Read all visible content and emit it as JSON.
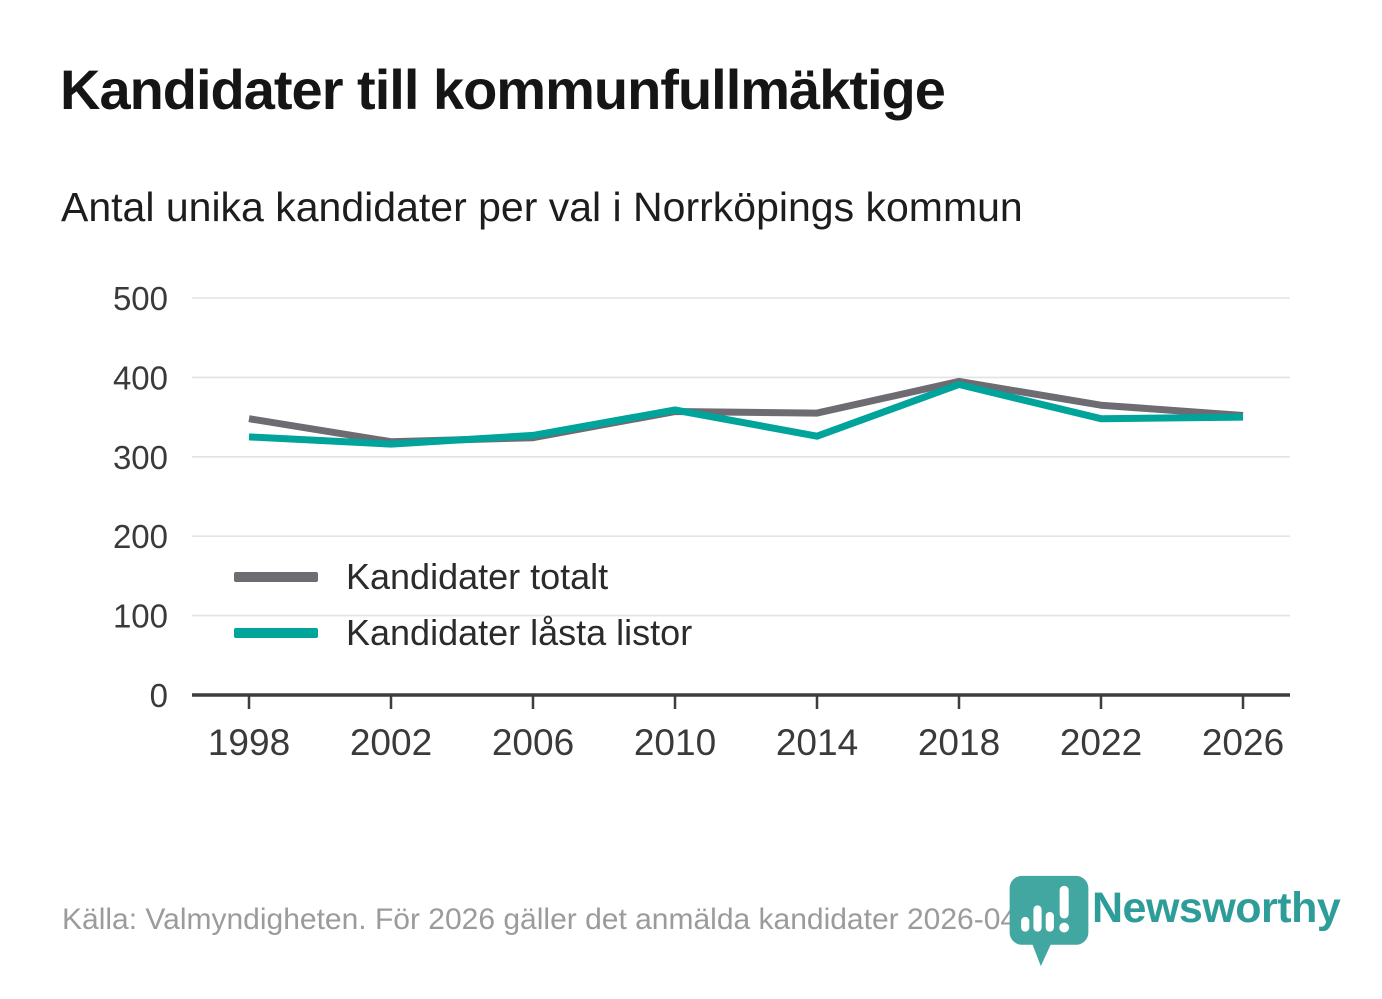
{
  "header": {
    "title": "Kandidater till kommunfullmäktige",
    "subtitle": "Antal unika kandidater per val i Norrköpings kommun"
  },
  "chart_data": {
    "type": "line",
    "title": "Kandidater till kommunfullmäktige",
    "subtitle": "Antal unika kandidater per val i Norrköpings kommun",
    "categories": [
      "1998",
      "2002",
      "2006",
      "2010",
      "2014",
      "2018",
      "2022",
      "2026"
    ],
    "series": [
      {
        "name": "Kandidater totalt",
        "color": "#6F6B72",
        "values": [
          348,
          319,
          324,
          357,
          355,
          395,
          365,
          352
        ]
      },
      {
        "name": "Kandidater låsta listor",
        "color": "#00A49A",
        "values": [
          325,
          316,
          327,
          359,
          326,
          391,
          348,
          350
        ]
      }
    ],
    "xlabel": "",
    "ylabel": "",
    "ylim": [
      0,
      500
    ],
    "yticks": [
      0,
      100,
      200,
      300,
      400,
      500
    ],
    "grid": true,
    "legend_position": "inside-left"
  },
  "footer": {
    "source": "Källa: Valmyndigheten. För 2026 gäller det anmälda kandidater 2026-04-10."
  },
  "logo": {
    "text": "Newsworthy",
    "icon": "newsworthy-pin-barchart-icon"
  },
  "colors": {
    "background": "#FFFFFF",
    "title_text": "#151515",
    "subtitle_text": "#1D1D1D",
    "legend_text": "#2B2B2B",
    "tick_label": "#3A3A3A",
    "grid_line": "#E3E3E3",
    "axis_line": "#3D3D3D",
    "footer_text": "#9B9B9B",
    "logo_teal": "#2E9D99",
    "logo_icon_teal": "#41A7A0"
  }
}
